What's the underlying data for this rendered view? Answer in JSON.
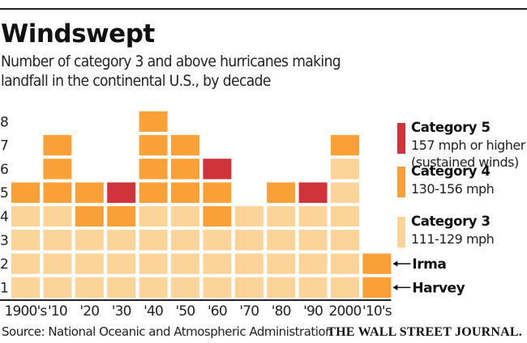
{
  "header": {
    "title": "Windswept",
    "subtitle": "Number of category 3 and above hurricanes making landfall in the continental U.S., by decade"
  },
  "chart_data": {
    "type": "bar",
    "stacked": true,
    "title": "Windswept",
    "subtitle": "Number of category 3 and above hurricanes making landfall in the continental U.S., by decade",
    "xlabel": "",
    "ylabel": "",
    "categories": [
      "1900's",
      "'10",
      "'20",
      "'30",
      "'40",
      "'50",
      "'60",
      "'70",
      "'80",
      "'90",
      "2000",
      "'10's"
    ],
    "series": [
      {
        "name": "Category 3",
        "description": "111-129 mph",
        "color": "#fcd49a",
        "values": [
          4,
          4,
          3,
          3,
          4,
          4,
          3,
          4,
          4,
          4,
          6,
          0
        ]
      },
      {
        "name": "Category 4",
        "description": "130-156 mph",
        "color": "#f9a037",
        "values": [
          1,
          3,
          2,
          1,
          4,
          3,
          2,
          0,
          1,
          0,
          1,
          2
        ]
      },
      {
        "name": "Category 5",
        "description": "157 mph or higher (sustained winds)",
        "color": "#d0333b",
        "values": [
          0,
          0,
          0,
          1,
          0,
          0,
          1,
          0,
          0,
          1,
          0,
          0
        ]
      }
    ],
    "yticks": [
      1,
      2,
      3,
      4,
      5,
      6,
      7,
      8
    ],
    "ylim": [
      0,
      8
    ],
    "grid": false,
    "legend_position": "right",
    "annotations": [
      {
        "text": "Harvey",
        "category": "'10's",
        "row": 1
      },
      {
        "text": "Irma",
        "category": "'10's",
        "row": 2
      }
    ]
  },
  "legend": [
    {
      "title": "Category 5",
      "desc_lines": [
        "157 mph or higher",
        "(sustained winds)"
      ],
      "color": "#d0333b"
    },
    {
      "title": "Category 4",
      "desc_lines": [
        "130-156 mph"
      ],
      "color": "#f9a037"
    },
    {
      "title": "Category 3",
      "desc_lines": [
        "111-129 mph"
      ],
      "color": "#fcd49a"
    }
  ],
  "footer": {
    "source": "Source: National Oceanic and Atmospheric Administration",
    "brand": "THE WALL STREET JOURNAL."
  }
}
